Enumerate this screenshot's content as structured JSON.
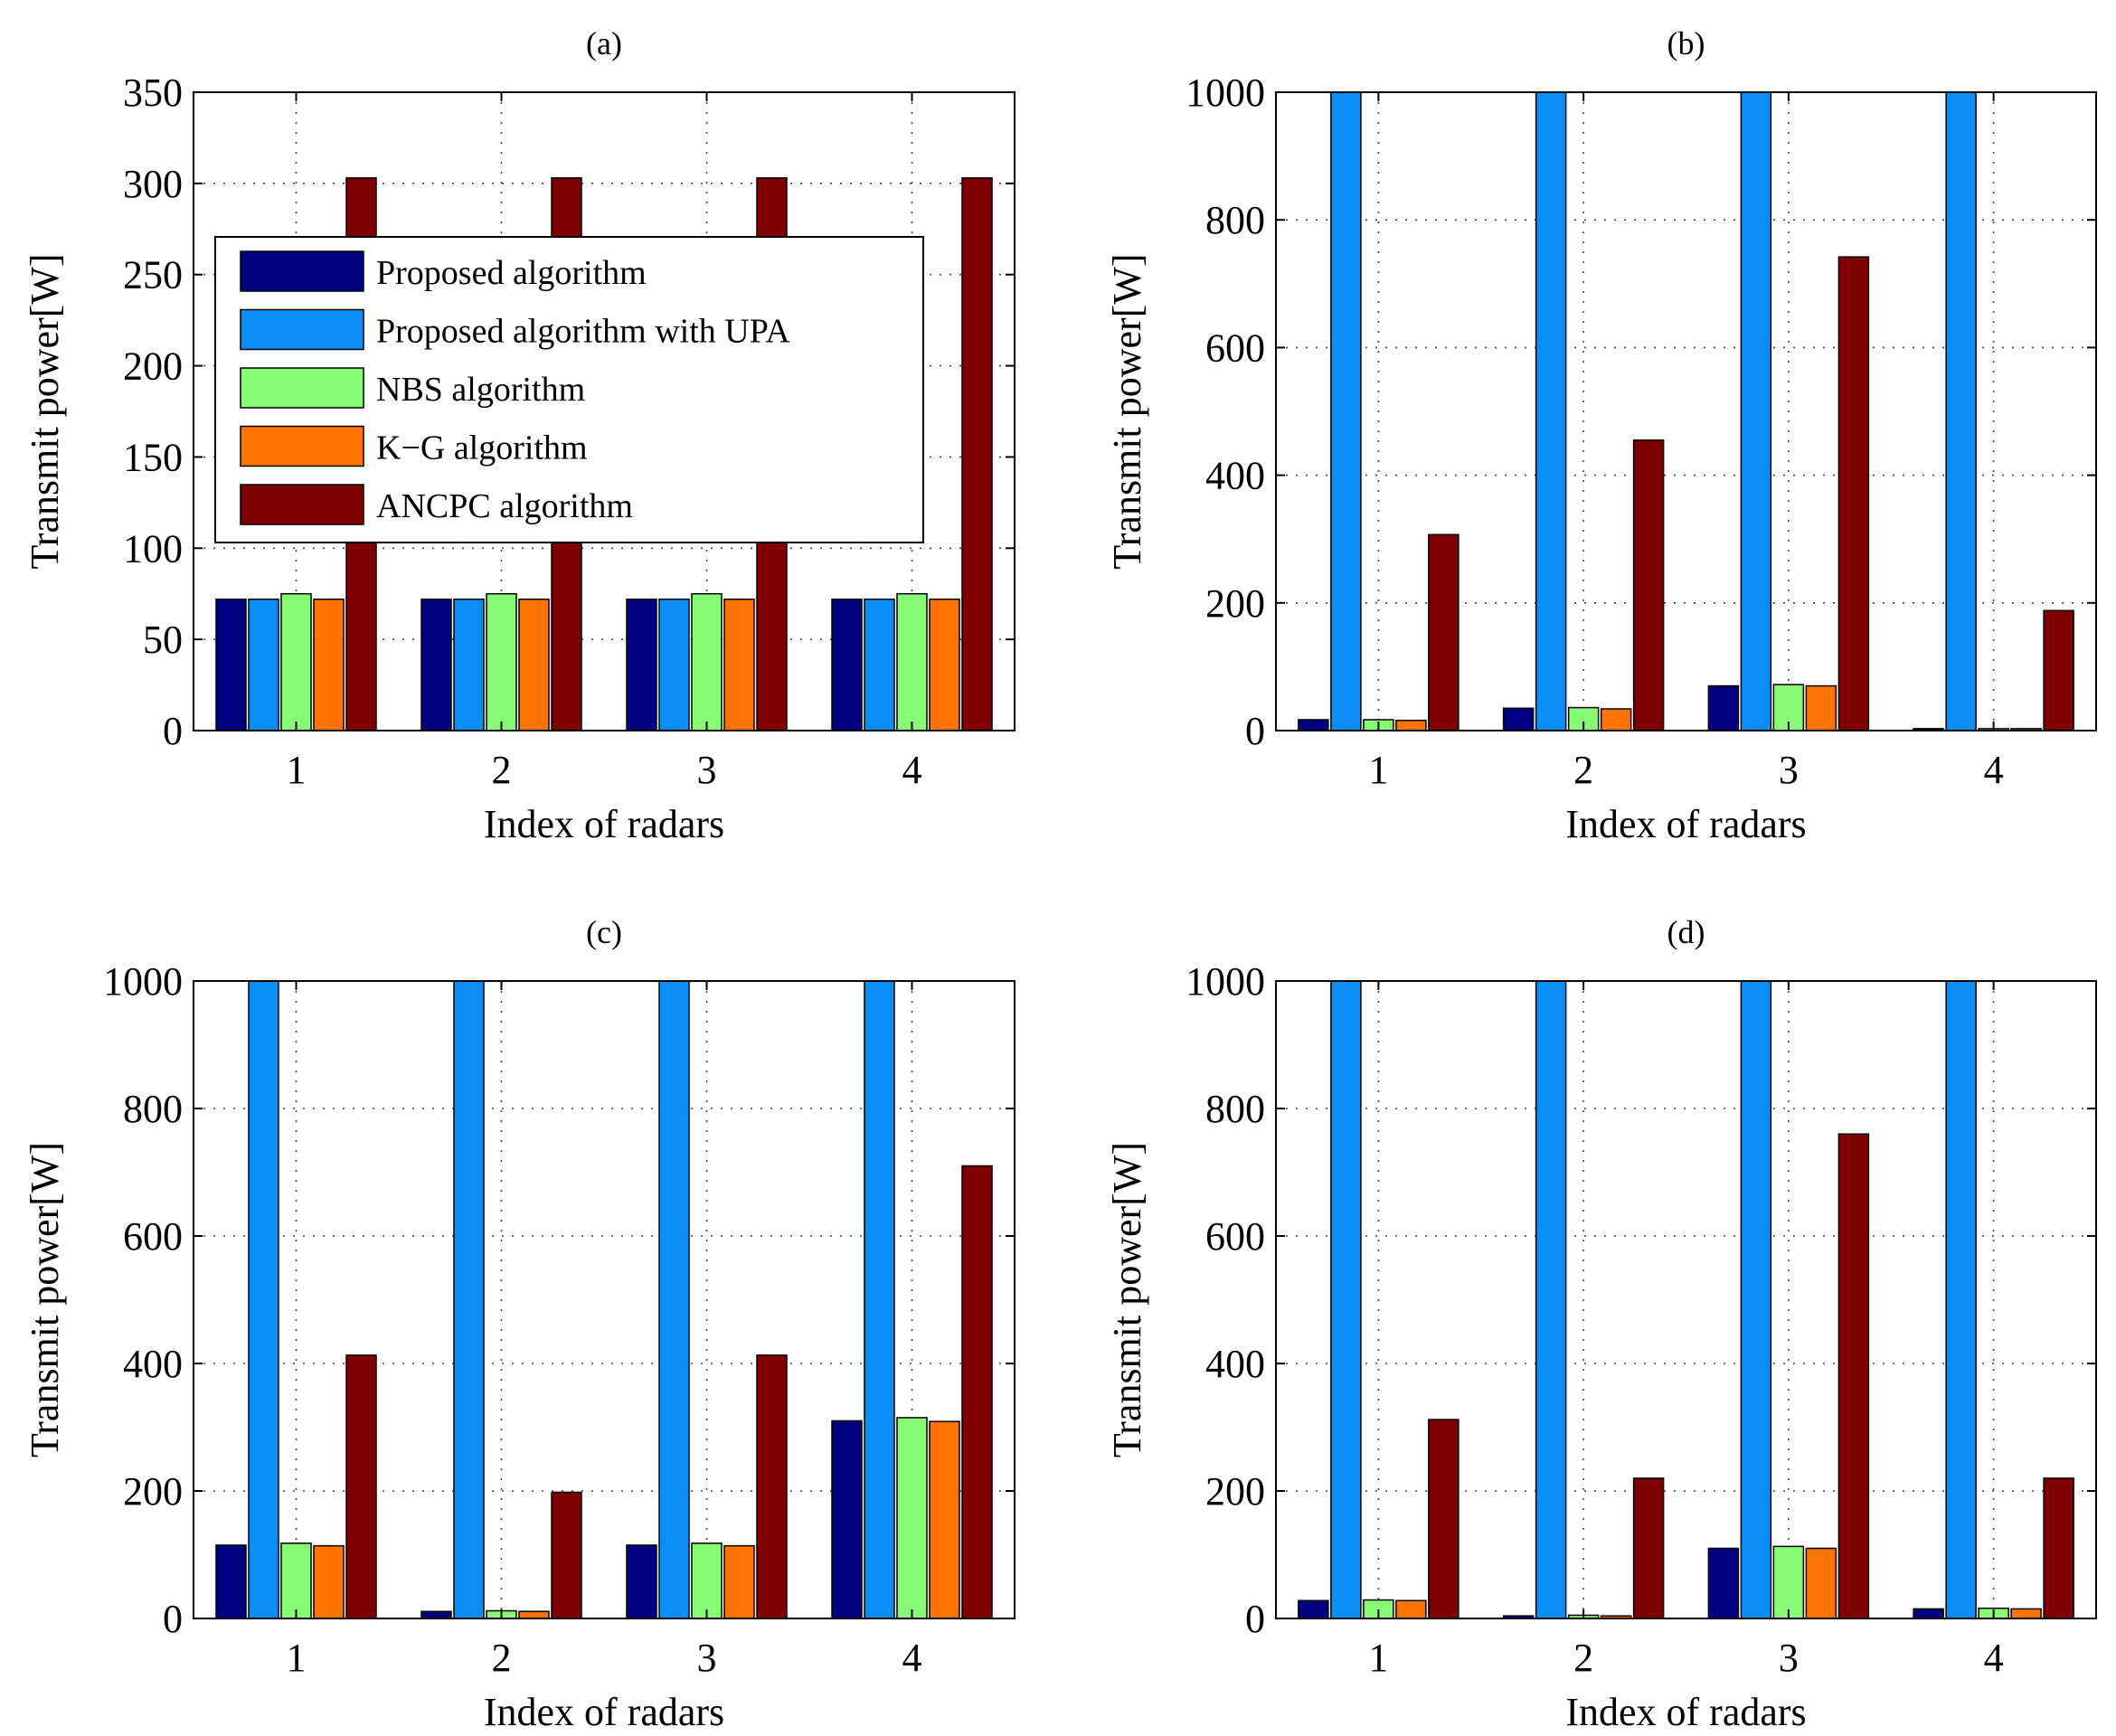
{
  "chart_data": [
    {
      "panel": "(a)",
      "type": "bar",
      "title": "(a)",
      "xlabel": "Index of radars",
      "ylabel": "Transmit power[W]",
      "categories": [
        "1",
        "2",
        "3",
        "4"
      ],
      "ylim": [
        0,
        350
      ],
      "yticks": [
        0,
        50,
        100,
        150,
        200,
        250,
        300,
        350
      ],
      "grid": true,
      "legend": "upper-left",
      "series": [
        {
          "name": "Proposed algorithm",
          "values": [
            72,
            72,
            72,
            72
          ]
        },
        {
          "name": "Proposed algorithm with UPA",
          "values": [
            72,
            72,
            72,
            72
          ]
        },
        {
          "name": "NBS algorithm",
          "values": [
            75,
            75,
            75,
            75
          ]
        },
        {
          "name": "K−G algorithm",
          "values": [
            72,
            72,
            72,
            72
          ]
        },
        {
          "name": "ANCPC algorithm",
          "values": [
            303,
            303,
            303,
            303
          ]
        }
      ]
    },
    {
      "panel": "(b)",
      "type": "bar",
      "title": "(b)",
      "xlabel": "Index of radars",
      "ylabel": "Transmit power[W]",
      "categories": [
        "1",
        "2",
        "3",
        "4"
      ],
      "ylim": [
        0,
        1000
      ],
      "yticks": [
        0,
        200,
        400,
        600,
        800,
        1000
      ],
      "grid": true,
      "series": [
        {
          "name": "Proposed algorithm",
          "values": [
            17,
            35,
            70,
            3
          ]
        },
        {
          "name": "Proposed algorithm with UPA",
          "values": [
            1000,
            1000,
            1000,
            1000
          ]
        },
        {
          "name": "NBS algorithm",
          "values": [
            17,
            36,
            72,
            3
          ]
        },
        {
          "name": "K−G algorithm",
          "values": [
            16,
            34,
            70,
            3
          ]
        },
        {
          "name": "ANCPC algorithm",
          "values": [
            307,
            455,
            742,
            188
          ]
        }
      ]
    },
    {
      "panel": "(c)",
      "type": "bar",
      "title": "(c)",
      "xlabel": "Index of radars",
      "ylabel": "Transmit power[W]",
      "categories": [
        "1",
        "2",
        "3",
        "4"
      ],
      "ylim": [
        0,
        1000
      ],
      "yticks": [
        0,
        200,
        400,
        600,
        800,
        1000
      ],
      "grid": true,
      "series": [
        {
          "name": "Proposed algorithm",
          "values": [
            115,
            11,
            115,
            310
          ]
        },
        {
          "name": "Proposed algorithm with UPA",
          "values": [
            1000,
            1000,
            1000,
            1000
          ]
        },
        {
          "name": "NBS algorithm",
          "values": [
            118,
            12,
            118,
            315
          ]
        },
        {
          "name": "K−G algorithm",
          "values": [
            114,
            11,
            114,
            309
          ]
        },
        {
          "name": "ANCPC algorithm",
          "values": [
            413,
            198,
            413,
            710
          ]
        }
      ]
    },
    {
      "panel": "(d)",
      "type": "bar",
      "title": "(d)",
      "xlabel": "Index of radars",
      "ylabel": "Transmit power[W]",
      "categories": [
        "1",
        "2",
        "3",
        "4"
      ],
      "ylim": [
        0,
        1000
      ],
      "yticks": [
        0,
        200,
        400,
        600,
        800,
        1000
      ],
      "grid": true,
      "series": [
        {
          "name": "Proposed algorithm",
          "values": [
            28,
            4,
            110,
            15
          ]
        },
        {
          "name": "Proposed algorithm with UPA",
          "values": [
            1000,
            1000,
            1000,
            1000
          ]
        },
        {
          "name": "NBS algorithm",
          "values": [
            29,
            5,
            113,
            16
          ]
        },
        {
          "name": "K−G algorithm",
          "values": [
            28,
            4,
            110,
            15
          ]
        },
        {
          "name": "ANCPC algorithm",
          "values": [
            312,
            220,
            760,
            220
          ]
        }
      ]
    }
  ],
  "series_colors": [
    "#000080",
    "#0a8ef5",
    "#87fb74",
    "#ff7303",
    "#7e0000"
  ]
}
